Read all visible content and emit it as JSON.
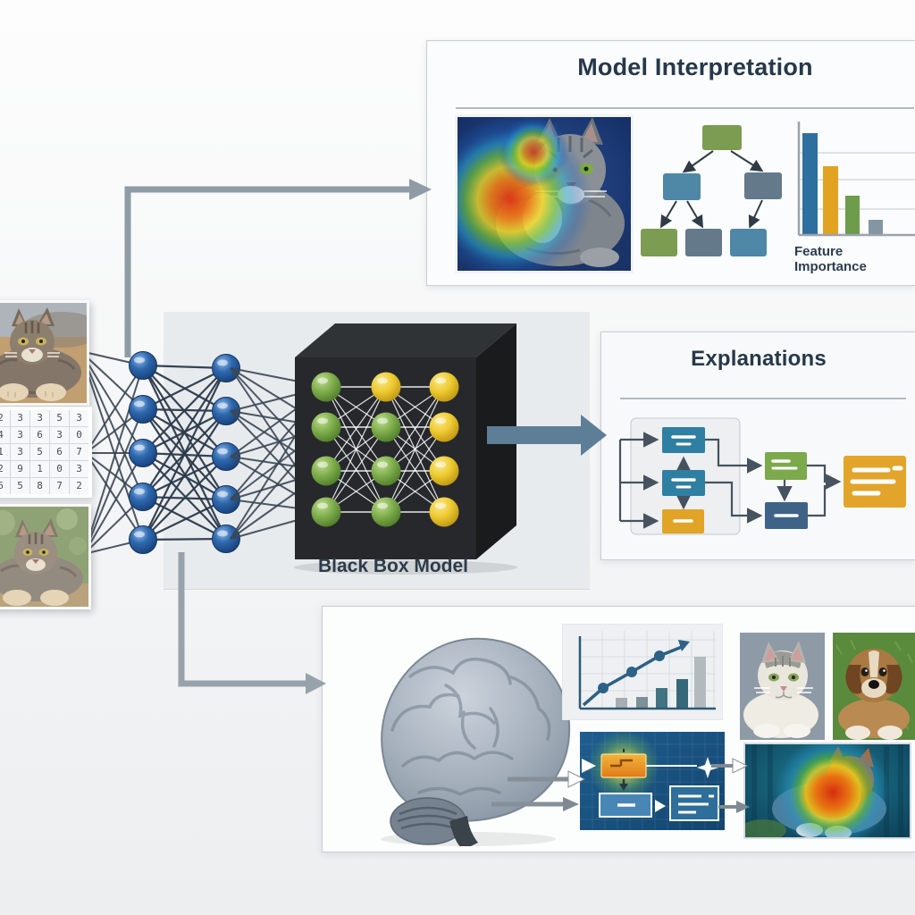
{
  "scene": {
    "description": "Explainable AI diagram: inputs flow through a neural network into a black box model, with interpretation and explanation outputs"
  },
  "inputs": {
    "top_image": "tabby-cat-photo",
    "bottom_image": "tabby-cat-photo-outdoor",
    "number_grid": {
      "rows": [
        [
          "2",
          "3",
          "3",
          "5",
          "3"
        ],
        [
          "4",
          "3",
          "6",
          "3",
          "0"
        ],
        [
          "1",
          "3",
          "5",
          "6",
          "7"
        ],
        [
          "2",
          "9",
          "1",
          "0",
          "3"
        ],
        [
          "6",
          "5",
          "8",
          "7",
          "2"
        ]
      ]
    }
  },
  "network": {
    "layer_sizes": [
      5,
      5
    ],
    "node_color": "#2e68ae"
  },
  "black_box": {
    "label": "Black Box Model",
    "node_columns": [
      [
        "g",
        "g",
        "g",
        "g"
      ],
      [
        "y",
        "g",
        "g",
        "g"
      ],
      [
        "y",
        "y",
        "y",
        "y"
      ]
    ],
    "green": "#7fae4c",
    "yellow": "#eecb31"
  },
  "model_interpretation": {
    "title": "Model Interpretation",
    "heatmap_image": "cat-saliency-heatmap",
    "feature_importance": {
      "label": "Feature Importance",
      "values": [
        0.9,
        0.61,
        0.35,
        0.13
      ],
      "colors": [
        "#2d6f9f",
        "#e2a322",
        "#6d9c4b",
        "#8496a2"
      ]
    }
  },
  "explanations": {
    "title": "Explanations"
  },
  "bottom_panel": {
    "cat_label": "Cat",
    "dog_label": "Dog",
    "trend_chart": {
      "bar_values": [
        0.15,
        0.16,
        0.29,
        0.42,
        0.73
      ],
      "bar_colors": [
        "#a7aeb2",
        "#7d9097",
        "#427381",
        "#35697a",
        "#b3babd"
      ],
      "line_trend": "rising"
    },
    "heatmap_image": "cat-saliency-heatmap-2"
  },
  "chart_data": [
    {
      "type": "bar",
      "title": "Feature Importance",
      "categories": [
        "",
        "",
        "",
        ""
      ],
      "values": [
        0.9,
        0.61,
        0.35,
        0.13
      ],
      "ylim": [
        0,
        1
      ],
      "grid": true
    },
    {
      "type": "bar",
      "title": "",
      "categories": [
        "",
        "",
        "",
        "",
        ""
      ],
      "values": [
        0.15,
        0.16,
        0.29,
        0.42,
        0.73
      ],
      "overlay_line": [
        0.1,
        0.3,
        0.52,
        0.75,
        0.92
      ],
      "ylim": [
        0,
        1
      ],
      "grid": true
    }
  ]
}
